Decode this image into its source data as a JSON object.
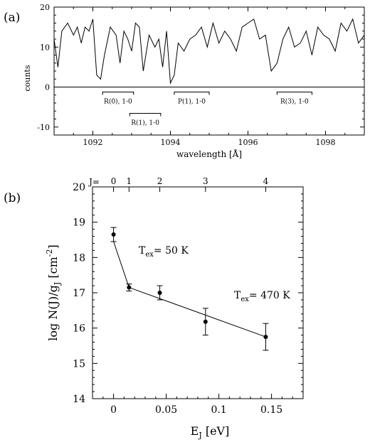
{
  "chart_data": [
    {
      "type": "line",
      "panel_label": "(a)",
      "xlabel": "wavelength [Å]",
      "ylabel": "counts",
      "xlim": [
        1091,
        1099
      ],
      "ylim": [
        -12,
        20
      ],
      "xticks": [
        1092,
        1094,
        1096,
        1098
      ],
      "yticks": [
        -10,
        0,
        10,
        20
      ],
      "zero_line": true,
      "series": [
        {
          "x": [
            1091.0,
            1091.1,
            1091.2,
            1091.35,
            1091.5,
            1091.6,
            1091.7,
            1091.8,
            1091.9,
            1092.0,
            1092.1,
            1092.2,
            1092.3,
            1092.45,
            1092.6,
            1092.7,
            1092.8,
            1092.9,
            1093.0,
            1093.1,
            1093.2,
            1093.3,
            1093.45,
            1093.6,
            1093.7,
            1093.8,
            1093.9,
            1094.0,
            1094.1,
            1094.2,
            1094.35,
            1094.5,
            1094.65,
            1094.8,
            1094.95,
            1095.1,
            1095.25,
            1095.4,
            1095.55,
            1095.7,
            1095.85,
            1096.0,
            1096.15,
            1096.3,
            1096.45,
            1096.6,
            1096.75,
            1096.9,
            1097.05,
            1097.2,
            1097.35,
            1097.5,
            1097.65,
            1097.8,
            1097.95,
            1098.1,
            1098.25,
            1098.4,
            1098.55,
            1098.7,
            1098.85,
            1099.0
          ],
          "y": [
            12,
            5,
            14,
            16,
            13,
            15,
            11,
            15,
            14,
            17,
            3,
            2,
            8,
            15,
            13,
            6,
            14,
            12,
            9,
            16,
            15,
            4,
            13,
            10,
            12,
            5,
            14,
            1,
            3,
            11,
            9,
            12,
            13,
            15,
            10,
            16,
            11,
            14,
            12,
            9,
            15,
            16,
            17,
            12,
            13,
            4,
            6,
            12,
            15,
            10,
            11,
            14,
            8,
            15,
            13,
            12,
            9,
            16,
            14,
            17,
            11,
            13
          ]
        }
      ],
      "annotations": [
        {
          "label": "R(0), 1-0",
          "x_start": 1092.25,
          "x_end": 1093.05,
          "row": 1
        },
        {
          "label": "R(1), 1-0",
          "x_start": 1092.95,
          "x_end": 1093.75,
          "row": 2
        },
        {
          "label": "P(1), 1-0",
          "x_start": 1094.1,
          "x_end": 1095.0,
          "row": 1
        },
        {
          "label": "R(3), 1-0",
          "x_start": 1096.75,
          "x_end": 1097.65,
          "row": 1
        }
      ]
    },
    {
      "type": "scatter",
      "panel_label": "(b)",
      "xlabel": "E_J [eV]",
      "ylabel": "log N(J)/g_J [cm^-2]",
      "top_axis_label": "J=",
      "xlim": [
        -0.02,
        0.18
      ],
      "ylim": [
        14,
        20
      ],
      "xticks": [
        0,
        0.05,
        0.1,
        0.15
      ],
      "xtick_labels": [
        "0",
        "0.05",
        "0.1",
        "0.15"
      ],
      "yticks": [
        14,
        15,
        16,
        17,
        18,
        19,
        20
      ],
      "top_ticks": [
        {
          "J": "0",
          "E": 0.0
        },
        {
          "J": "1",
          "E": 0.0147
        },
        {
          "J": "2",
          "E": 0.0439
        },
        {
          "J": "3",
          "E": 0.0873
        },
        {
          "J": "4",
          "E": 0.1445
        }
      ],
      "points": [
        {
          "J": 0,
          "x": 0.0,
          "y": 18.65,
          "err": 0.2
        },
        {
          "J": 1,
          "x": 0.0147,
          "y": 17.15,
          "err": 0.1
        },
        {
          "J": 2,
          "x": 0.0439,
          "y": 17.0,
          "err": 0.2
        },
        {
          "J": 3,
          "x": 0.0873,
          "y": 16.18,
          "err": 0.38
        },
        {
          "J": 4,
          "x": 0.1445,
          "y": 15.75,
          "err": 0.38
        }
      ],
      "fit_lines": [
        {
          "label": "T_ex= 50 K",
          "x": [
            0.0,
            0.0147
          ],
          "y": [
            18.45,
            17.15
          ]
        },
        {
          "label": "T_ex= 470 K",
          "x": [
            0.0147,
            0.1445
          ],
          "y": [
            17.15,
            15.75
          ]
        }
      ]
    }
  ]
}
